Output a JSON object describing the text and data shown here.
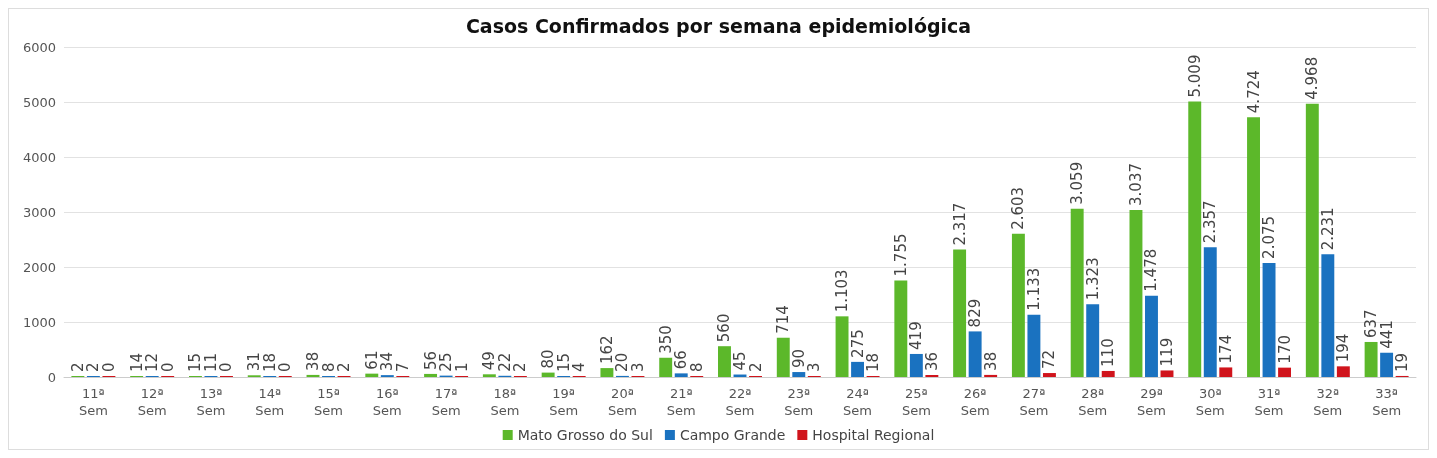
{
  "chart_data": {
    "type": "bar",
    "title": "Casos Confirmados por semana epidemiológica",
    "categories": [
      "11ª Sem",
      "12ª Sem",
      "13ª Sem",
      "14ª Sem",
      "15ª Sem",
      "16ª Sem",
      "17ª Sem",
      "18ª Sem",
      "19ª Sem",
      "20ª Sem",
      "21ª Sem",
      "22ª Sem",
      "23ª Sem",
      "24ª Sem",
      "25ª Sem",
      "26ª Sem",
      "27ª Sem",
      "28ª Sem",
      "29ª Sem",
      "30ª Sem",
      "31ª Sem",
      "32ª Sem",
      "33ª Sem"
    ],
    "series": [
      {
        "name": "Mato Grosso do Sul",
        "color": "#5cb82a",
        "values": [
          2,
          14,
          15,
          31,
          38,
          61,
          56,
          49,
          80,
          162,
          350,
          560,
          714,
          1103,
          1755,
          2317,
          2603,
          3059,
          3037,
          5009,
          4724,
          4968,
          637
        ],
        "value_labels": [
          "2",
          "14",
          "15",
          "31",
          "38",
          "61",
          "56",
          "49",
          "80",
          "162",
          "350",
          "560",
          "714",
          "1.103",
          "1.755",
          "2.317",
          "2.603",
          "3.059",
          "3.037",
          "5.009",
          "4.724",
          "4.968",
          "637"
        ]
      },
      {
        "name": "Campo Grande",
        "color": "#1a72c0",
        "values": [
          2,
          12,
          11,
          18,
          8,
          34,
          25,
          22,
          15,
          20,
          66,
          45,
          90,
          275,
          419,
          829,
          1133,
          1323,
          1478,
          2357,
          2075,
          2231,
          441
        ],
        "value_labels": [
          "2",
          "12",
          "11",
          "18",
          "8",
          "34",
          "25",
          "22",
          "15",
          "20",
          "66",
          "45",
          "90",
          "275",
          "419",
          "829",
          "1.133",
          "1.323",
          "1.478",
          "2.357",
          "2.075",
          "2.231",
          "441"
        ]
      },
      {
        "name": "Hospital Regional",
        "color": "#d0141c",
        "values": [
          0,
          0,
          0,
          0,
          2,
          7,
          1,
          2,
          4,
          3,
          8,
          2,
          3,
          18,
          36,
          38,
          72,
          110,
          119,
          174,
          170,
          194,
          19
        ],
        "value_labels": [
          "0",
          "0",
          "0",
          "0",
          "2",
          "7",
          "1",
          "2",
          "4",
          "3",
          "8",
          "2",
          "3",
          "18",
          "36",
          "38",
          "72",
          "110",
          "119",
          "174",
          "170",
          "194",
          "19"
        ]
      }
    ],
    "ylim": [
      0,
      6000
    ],
    "yticks": [
      0,
      1000,
      2000,
      3000,
      4000,
      5000,
      6000
    ],
    "grid": "y",
    "legend": "bottom"
  }
}
